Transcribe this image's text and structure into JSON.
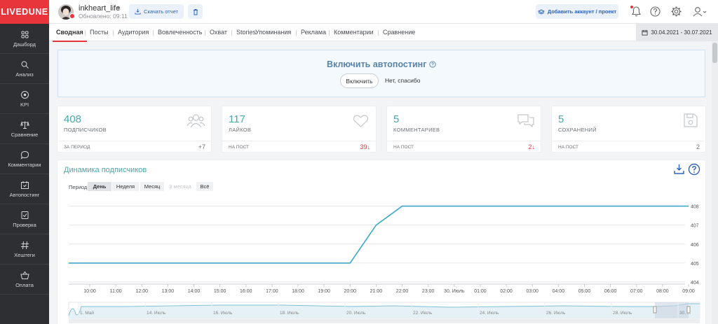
{
  "sidebar": {
    "logo": "LIVEDUNE",
    "items": [
      {
        "label": "Дашборд",
        "icon": "grid-icon"
      },
      {
        "label": "Анализ",
        "icon": "search-icon"
      },
      {
        "label": "KPI",
        "icon": "target-icon"
      },
      {
        "label": "Сравнение",
        "icon": "scales-icon"
      },
      {
        "label": "Комментарии",
        "icon": "chat-bubble-icon"
      },
      {
        "label": "Автопостинг",
        "icon": "calendar-icon"
      },
      {
        "label": "Проверка",
        "icon": "check-shield-icon"
      },
      {
        "label": "Хештеги",
        "icon": "hashtag-icon"
      },
      {
        "label": "Оплата",
        "icon": "basket-icon"
      }
    ]
  },
  "header": {
    "account_name": "inkheart_life",
    "updated": "Обновлено: 09:11",
    "download_label": "Скачать отчет",
    "add_label": "Добавить аккаунт / проект"
  },
  "tabs": [
    "Сводная",
    "Посты",
    "Аудитория",
    "Вовлеченность",
    "Охват",
    "Stories",
    "Упоминания",
    "Реклама",
    "Комментарии",
    "Сравнение"
  ],
  "active_tab": "Сводная",
  "date_range": "30.04.2021 - 30.07.2021",
  "autopost": {
    "title": "Включить автопостинг",
    "enable_label": "Включить",
    "decline_label": "Нет, спасибо"
  },
  "cards": [
    {
      "value": "408",
      "label": "ПОДПИСЧИКОВ",
      "footer": "ЗА ПЕРИОД",
      "delta": "+7",
      "delta_negative": false,
      "icon": "users-icon"
    },
    {
      "value": "117",
      "label": "ЛАЙКОВ",
      "footer": "НА ПОСТ",
      "delta": "39↓",
      "delta_negative": true,
      "icon": "heart-icon"
    },
    {
      "value": "5",
      "label": "КОММЕНТАРИЕВ",
      "footer": "НА ПОСТ",
      "delta": "2↓",
      "delta_negative": true,
      "icon": "comments-icon"
    },
    {
      "value": "5",
      "label": "СОХРАНЕНИЙ",
      "footer": "НА ПОСТ",
      "delta": "2",
      "delta_negative": false,
      "icon": "floppy-icon"
    }
  ],
  "chart": {
    "title": "Динамика подписчиков",
    "period_label": "Период",
    "periods": [
      {
        "label": "День",
        "state": "active"
      },
      {
        "label": "Неделя",
        "state": "normal"
      },
      {
        "label": "Месяц",
        "state": "normal"
      },
      {
        "label": "3 месяца",
        "state": "disabled"
      },
      {
        "label": "Всё",
        "state": "normal"
      }
    ],
    "navigator_labels": [
      "1. Май",
      "14. Июль",
      "16. Июль",
      "18. Июль",
      "20. Июль",
      "22. Июль",
      "24. Июль",
      "26. Июль",
      "28. Июль",
      "30. ..."
    ]
  },
  "chart_data": {
    "type": "line",
    "x": [
      "10:00",
      "11:00",
      "12:00",
      "13:00",
      "14:00",
      "15:00",
      "16:00",
      "17:00",
      "18:00",
      "19:00",
      "20:00",
      "21:00",
      "22:00",
      "23:00",
      "30. Июль",
      "01:00",
      "02:00",
      "03:00",
      "04:00",
      "05:00",
      "06:00",
      "07:00",
      "08:00",
      "09:00"
    ],
    "series": [
      {
        "values": [
          405,
          405,
          405,
          405,
          405,
          405,
          405,
          405,
          405,
          405,
          405,
          407,
          408,
          408,
          408,
          408,
          408,
          408,
          408,
          408,
          408,
          408,
          408,
          408
        ]
      }
    ],
    "yticks": [
      404,
      405,
      406,
      407,
      408
    ],
    "ylim": [
      404,
      408.5
    ],
    "grid": true,
    "color": "#3ea8c4"
  },
  "colors": {
    "accent": "#e8343b",
    "teal": "#4aa6a9",
    "blue": "#2f63b8"
  }
}
